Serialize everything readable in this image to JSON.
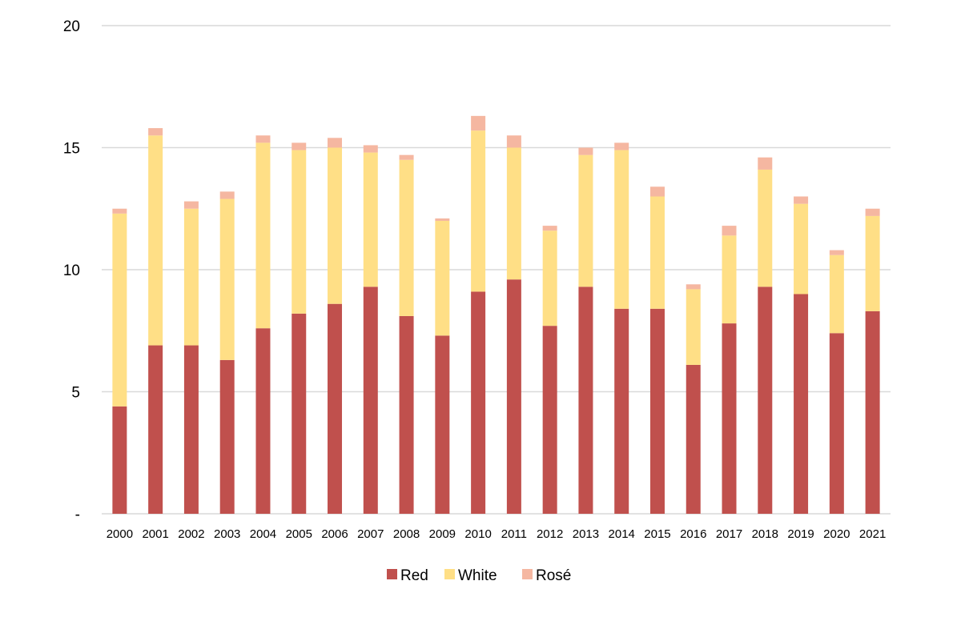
{
  "chart_data": {
    "type": "bar",
    "stacked": true,
    "categories": [
      "2000",
      "2001",
      "2002",
      "2003",
      "2004",
      "2005",
      "2006",
      "2007",
      "2008",
      "2009",
      "2010",
      "2011",
      "2012",
      "2013",
      "2014",
      "2015",
      "2016",
      "2017",
      "2018",
      "2019",
      "2020",
      "2021"
    ],
    "series": [
      {
        "name": "Red",
        "color": "#c0504d",
        "values": [
          4.4,
          6.9,
          6.9,
          6.3,
          7.6,
          8.2,
          8.6,
          9.3,
          8.1,
          7.3,
          9.1,
          9.6,
          7.7,
          9.3,
          8.4,
          8.4,
          6.1,
          7.8,
          9.3,
          9.0,
          7.4,
          8.3
        ]
      },
      {
        "name": "White",
        "color": "#ffdf86",
        "values": [
          7.9,
          8.6,
          5.6,
          6.6,
          7.6,
          6.7,
          6.4,
          5.5,
          6.4,
          4.7,
          6.6,
          5.4,
          3.9,
          5.4,
          6.5,
          4.6,
          3.1,
          3.6,
          4.8,
          3.7,
          3.2,
          3.9
        ]
      },
      {
        "name": "Rosé",
        "color": "#f5b7a1",
        "values": [
          0.2,
          0.3,
          0.3,
          0.3,
          0.3,
          0.3,
          0.4,
          0.3,
          0.2,
          0.1,
          0.6,
          0.5,
          0.2,
          0.3,
          0.3,
          0.4,
          0.2,
          0.4,
          0.5,
          0.3,
          0.2,
          0.3
        ]
      }
    ],
    "ylim": [
      0,
      20
    ],
    "yticks": [
      0,
      5,
      10,
      15,
      20
    ],
    "ytick_labels": [
      "-",
      "5",
      "10",
      "15",
      "20"
    ],
    "grid": true,
    "legend_position": "bottom"
  }
}
